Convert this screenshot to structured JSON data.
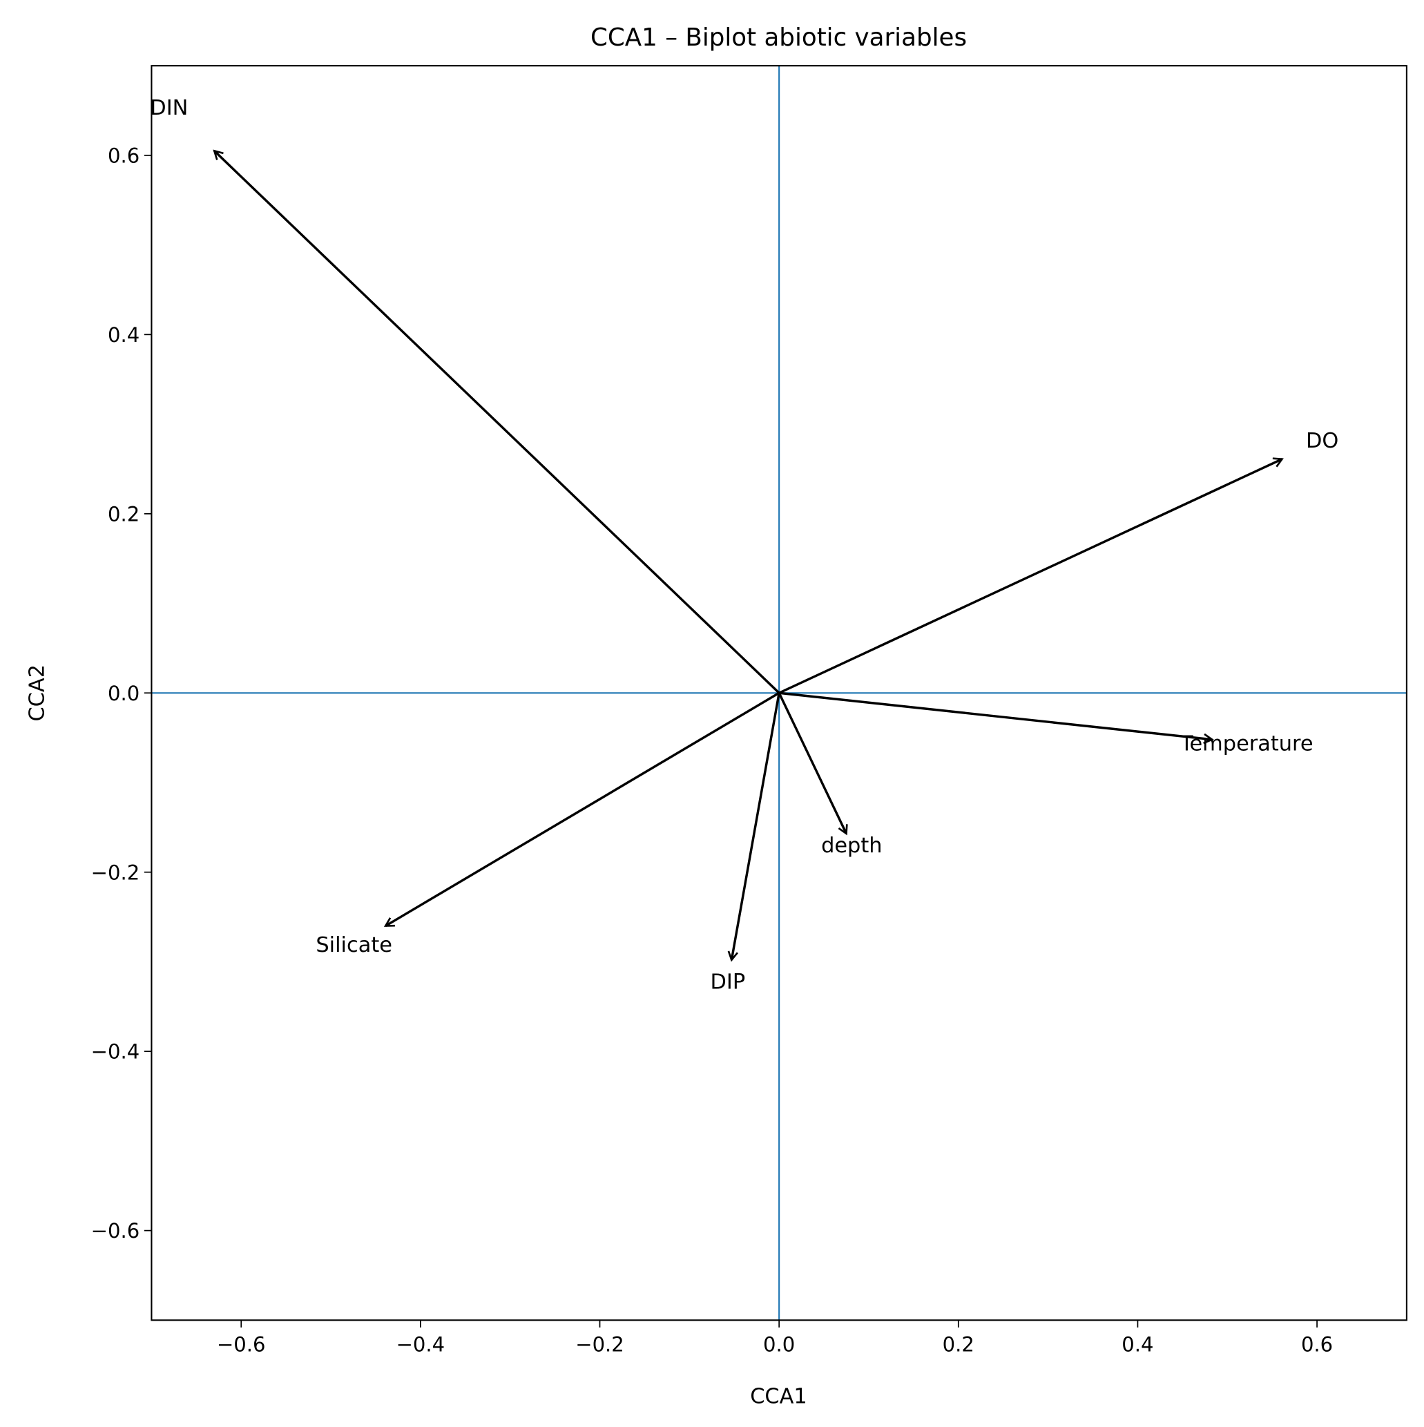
{
  "chart_data": {
    "type": "biplot",
    "title": "CCA1 – Biplot abiotic variables",
    "xlabel": "CCA1",
    "ylabel": "CCA2",
    "xlim": [
      -0.7,
      0.7
    ],
    "ylim": [
      -0.7,
      0.7
    ],
    "xticks": [
      -0.6,
      -0.4,
      -0.2,
      0.0,
      0.2,
      0.4,
      0.6
    ],
    "yticks": [
      -0.6,
      -0.4,
      -0.2,
      0.0,
      0.2,
      0.4,
      0.6
    ],
    "xtick_labels": [
      "−0.6",
      "−0.4",
      "−0.2",
      "0.0",
      "0.2",
      "0.4",
      "0.6"
    ],
    "ytick_labels": [
      "−0.6",
      "−0.4",
      "−0.2",
      "0.0",
      "0.2",
      "0.4",
      "0.6"
    ],
    "grid": false,
    "reference_line_color": "#1f77b4",
    "arrow_color": "#000000",
    "vectors": [
      {
        "name": "DIN",
        "x": -0.63,
        "y": 0.605
      },
      {
        "name": "DO",
        "x": 0.561,
        "y": 0.261
      },
      {
        "name": "Temperature",
        "x": 0.483,
        "y": -0.052
      },
      {
        "name": "depth",
        "x": 0.075,
        "y": -0.157
      },
      {
        "name": "DIP",
        "x": -0.053,
        "y": -0.298
      },
      {
        "name": "Silicate",
        "x": -0.439,
        "y": -0.26
      }
    ]
  }
}
